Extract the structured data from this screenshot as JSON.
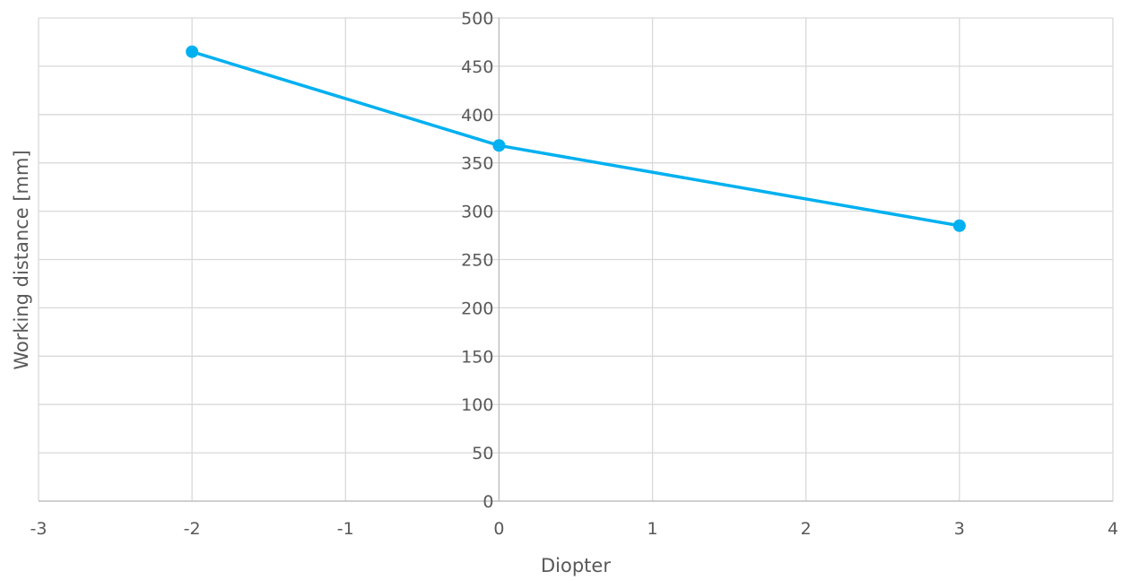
{
  "chart_data": {
    "type": "scatter",
    "title": "",
    "xlabel": "Diopter",
    "ylabel": "Working distance [mm]",
    "xlim": [
      -3,
      4
    ],
    "ylim": [
      0,
      500
    ],
    "x_ticks": [
      -3,
      -2,
      -1,
      0,
      1,
      2,
      3,
      4
    ],
    "y_ticks": [
      0,
      50,
      100,
      150,
      200,
      250,
      300,
      350,
      400,
      450,
      500
    ],
    "grid": true,
    "legend": "none",
    "lines_connect_points": true,
    "markers": true,
    "colors": {
      "series": "#00b0f0",
      "grid": "#d9d9d9",
      "axis": "#bfbfbf",
      "text": "#595959"
    },
    "series": [
      {
        "points": [
          {
            "x": -2,
            "y": 465
          },
          {
            "x": 0,
            "y": 368
          },
          {
            "x": 3,
            "y": 285
          }
        ]
      }
    ]
  }
}
